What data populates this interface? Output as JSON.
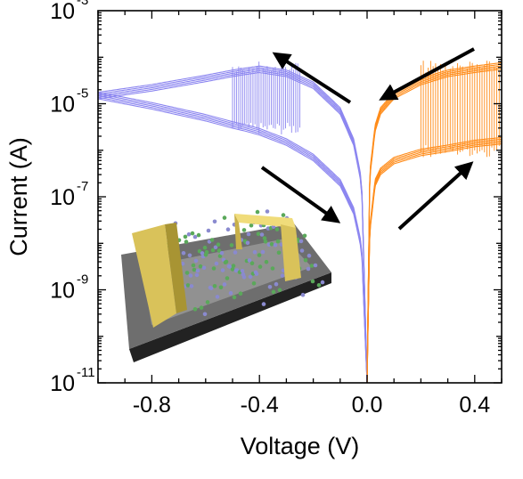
{
  "chart_data": {
    "type": "line",
    "xlabel": "Voltage (V)",
    "ylabel": "Current (A)",
    "x_scale": "linear",
    "y_scale": "log",
    "xlim": [
      -1.0,
      0.5
    ],
    "ylim": [
      1e-11,
      0.001
    ],
    "x_ticks": [
      {
        "value": -0.8,
        "label": "-0.8"
      },
      {
        "value": -0.4,
        "label": "-0.4"
      },
      {
        "value": 0.0,
        "label": "0.0"
      },
      {
        "value": 0.4,
        "label": "0.4"
      }
    ],
    "y_ticks": [
      {
        "value": 1e-11,
        "base": "10",
        "exp": "-11"
      },
      {
        "value": 1e-09,
        "base": "10",
        "exp": "-9"
      },
      {
        "value": 1e-07,
        "base": "10",
        "exp": "-7"
      },
      {
        "value": 1e-05,
        "base": "10",
        "exp": "-5"
      },
      {
        "value": 0.001,
        "base": "10",
        "exp": "-3"
      }
    ],
    "grid": false,
    "series": [
      {
        "color": "#8c86f0",
        "branch": "negative voltage, high-current state",
        "x": [
          -1.0,
          -0.8,
          -0.6,
          -0.5,
          -0.45,
          -0.4,
          -0.3,
          -0.2,
          -0.1,
          -0.05,
          -0.02,
          0.0
        ],
        "y": [
          1.5e-05,
          2.2e-05,
          3.5e-05,
          4.5e-05,
          5e-05,
          5.5e-05,
          4.5e-05,
          2.5e-05,
          7e-06,
          1.5e-06,
          2e-07,
          1e-11
        ]
      },
      {
        "color": "#8c86f0",
        "branch": "negative voltage, low-current state",
        "x": [
          -1.0,
          -0.8,
          -0.6,
          -0.5,
          -0.45,
          -0.4,
          -0.3,
          -0.2,
          -0.1,
          -0.05,
          -0.02,
          0.0
        ],
        "y": [
          1.5e-05,
          9e-06,
          5e-06,
          3.5e-06,
          3e-06,
          2.5e-06,
          1.5e-06,
          7e-07,
          2e-07,
          5e-08,
          8e-09,
          1e-11
        ]
      },
      {
        "color": "#ff8c1a",
        "branch": "positive voltage, high-current state",
        "x": [
          0.0,
          0.01,
          0.03,
          0.05,
          0.1,
          0.2,
          0.3,
          0.4,
          0.5
        ],
        "y": [
          1e-11,
          3e-07,
          3e-06,
          7e-06,
          1.5e-05,
          3e-05,
          4.5e-05,
          5.5e-05,
          6.5e-05
        ]
      },
      {
        "color": "#ff8c1a",
        "branch": "positive voltage, low-current state",
        "x": [
          0.0,
          0.01,
          0.03,
          0.05,
          0.1,
          0.2,
          0.3,
          0.4,
          0.5
        ],
        "y": [
          1e-11,
          2e-08,
          2e-07,
          3.5e-07,
          6e-07,
          9e-07,
          1.1e-06,
          1.4e-06,
          1.6e-06
        ]
      }
    ],
    "switching": [
      {
        "color": "#8c86f0",
        "x_range": [
          -0.5,
          -0.25
        ],
        "y_low": 3e-06,
        "y_high": 6e-05
      },
      {
        "color": "#ff8c1a",
        "x_range": [
          0.2,
          0.5
        ],
        "y_low": 1e-06,
        "y_high": 6e-05
      }
    ],
    "annotations": [
      {
        "type": "arrow",
        "color": "#000000",
        "meaning": "sweep direction toward negative voltage, upper branch"
      },
      {
        "type": "arrow",
        "color": "#000000",
        "meaning": "sweep direction toward zero, upper positive branch"
      },
      {
        "type": "arrow",
        "color": "#000000",
        "meaning": "sweep direction toward zero, lower negative branch"
      },
      {
        "type": "arrow",
        "color": "#000000",
        "meaning": "sweep direction toward positive voltage, lower branch"
      }
    ],
    "inset": {
      "depicts": "device schematic",
      "substrate_color": "#6e6e6e",
      "electrode_color": "#d9c25a",
      "lattice_colors": [
        "#5aa85a",
        "#8a8acf"
      ]
    }
  }
}
